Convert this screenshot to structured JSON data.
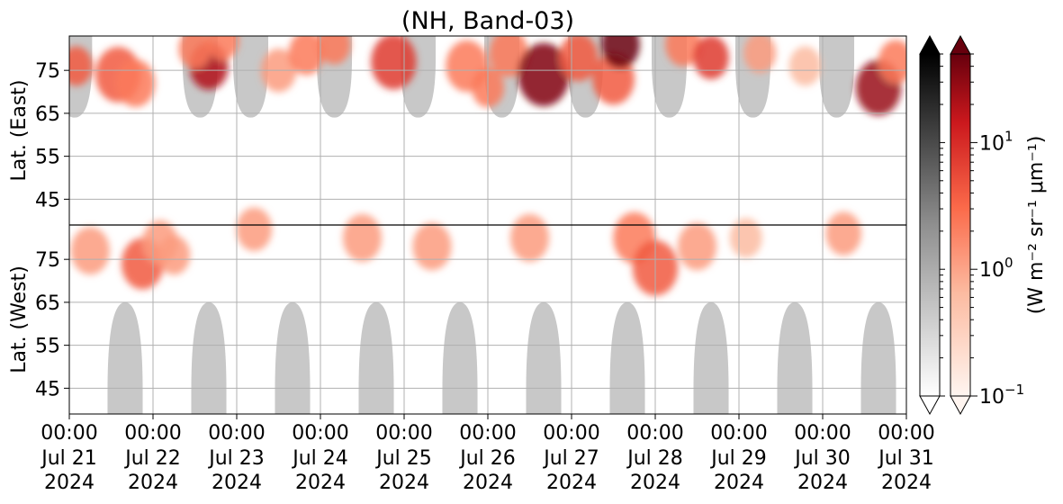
{
  "chart_data": {
    "type": "heatmap",
    "title": "(NH, Band-03)",
    "x": {
      "ticks": [
        {
          "date": "2024-07-21T00:00",
          "time": "00:00",
          "day": "Jul 21",
          "year": "2024"
        },
        {
          "date": "2024-07-22T00:00",
          "time": "00:00",
          "day": "Jul 22",
          "year": "2024"
        },
        {
          "date": "2024-07-23T00:00",
          "time": "00:00",
          "day": "Jul 23",
          "year": "2024"
        },
        {
          "date": "2024-07-24T00:00",
          "time": "00:00",
          "day": "Jul 24",
          "year": "2024"
        },
        {
          "date": "2024-07-25T00:00",
          "time": "00:00",
          "day": "Jul 25",
          "year": "2024"
        },
        {
          "date": "2024-07-26T00:00",
          "time": "00:00",
          "day": "Jul 26",
          "year": "2024"
        },
        {
          "date": "2024-07-27T00:00",
          "time": "00:00",
          "day": "Jul 27",
          "year": "2024"
        },
        {
          "date": "2024-07-28T00:00",
          "time": "00:00",
          "day": "Jul 28",
          "year": "2024"
        },
        {
          "date": "2024-07-29T00:00",
          "time": "00:00",
          "day": "Jul 29",
          "year": "2024"
        },
        {
          "date": "2024-07-30T00:00",
          "time": "00:00",
          "day": "Jul 30",
          "year": "2024"
        },
        {
          "date": "2024-07-31T00:00",
          "time": "00:00",
          "day": "Jul 31",
          "year": "2024"
        }
      ],
      "range": [
        "2024-07-21T00:00",
        "2024-07-31T00:00"
      ]
    },
    "y_top": {
      "label": "Lat. (East)",
      "ticks": [
        "45",
        "55",
        "65",
        "75"
      ],
      "range": [
        39,
        83
      ]
    },
    "y_bottom": {
      "label": "Lat. (West)",
      "ticks": [
        "75",
        "65",
        "55",
        "45"
      ],
      "range": [
        83,
        39
      ]
    },
    "grid": true,
    "colorbars": [
      {
        "name": "grey",
        "scale": "log",
        "range": [
          0.1,
          50
        ],
        "extend": "both",
        "colors": [
          "#ffffff",
          "#000000"
        ]
      },
      {
        "name": "reds",
        "scale": "log",
        "range": [
          0.1,
          50
        ],
        "extend": "both",
        "ticks": [
          {
            "value": 0.1,
            "base": "10",
            "exp": "−1"
          },
          {
            "value": 1,
            "base": "10",
            "exp": "0"
          },
          {
            "value": 10,
            "base": "10",
            "exp": "1"
          }
        ],
        "label": "(W m⁻² sr⁻¹ μm⁻¹)",
        "colors": [
          "#fff5f0",
          "#fcbba1",
          "#fb6a4a",
          "#cb181d",
          "#67000d"
        ]
      }
    ],
    "night_lobes": {
      "color": "#c8c8c8",
      "east_centers": [
        "2024-07-21T01:30",
        "2024-07-22T13:30",
        "2024-07-23T04:00",
        "2024-07-24T04:00",
        "2024-07-25T04:00",
        "2024-07-26T04:00",
        "2024-07-27T04:00",
        "2024-07-28T04:00",
        "2024-07-29T04:00",
        "2024-07-30T04:00"
      ],
      "west_centers": [
        "2024-07-21T16:00",
        "2024-07-22T16:00",
        "2024-07-23T16:00",
        "2024-07-24T16:00",
        "2024-07-25T16:00",
        "2024-07-26T16:00",
        "2024-07-27T16:00",
        "2024-07-28T16:00",
        "2024-07-29T16:00",
        "2024-07-30T16:00"
      ],
      "east_lat_edge": 64,
      "west_lat_edge": 65
    },
    "blobs": [
      {
        "t": "2024-07-21T02:00",
        "hemi": "E",
        "lat": 76,
        "level": 0.6,
        "size": 1
      },
      {
        "t": "2024-07-21T06:00",
        "hemi": "W",
        "lat": 77,
        "level": 0.4,
        "size": 1.2
      },
      {
        "t": "2024-07-21T14:00",
        "hemi": "E",
        "lat": 74,
        "level": 0.6,
        "size": 1.4
      },
      {
        "t": "2024-07-21T19:00",
        "hemi": "E",
        "lat": 72,
        "level": 0.5,
        "size": 1.2
      },
      {
        "t": "2024-07-21T21:00",
        "hemi": "W",
        "lat": 74,
        "level": 0.6,
        "size": 1.3
      },
      {
        "t": "2024-07-22T02:00",
        "hemi": "W",
        "lat": 79,
        "level": 0.4,
        "size": 1.1
      },
      {
        "t": "2024-07-22T06:00",
        "hemi": "W",
        "lat": 76,
        "level": 0.4,
        "size": 1
      },
      {
        "t": "2024-07-22T16:00",
        "hemi": "E",
        "lat": 76,
        "level": 0.85,
        "size": 1.2
      },
      {
        "t": "2024-07-22T12:00",
        "hemi": "E",
        "lat": 80,
        "level": 0.5,
        "size": 1
      },
      {
        "t": "2024-07-22T20:00",
        "hemi": "E",
        "lat": 82,
        "level": 0.5,
        "size": 1
      },
      {
        "t": "2024-07-23T05:00",
        "hemi": "W",
        "lat": 82,
        "level": 0.4,
        "size": 1.1
      },
      {
        "t": "2024-07-23T12:00",
        "hemi": "E",
        "lat": 75,
        "level": 0.4,
        "size": 1.1
      },
      {
        "t": "2024-07-23T20:00",
        "hemi": "E",
        "lat": 79,
        "level": 0.5,
        "size": 1.1
      },
      {
        "t": "2024-07-24T04:00",
        "hemi": "E",
        "lat": 81,
        "level": 0.5,
        "size": 1
      },
      {
        "t": "2024-07-24T12:00",
        "hemi": "W",
        "lat": 80,
        "level": 0.4,
        "size": 1.2
      },
      {
        "t": "2024-07-24T21:00",
        "hemi": "E",
        "lat": 77,
        "level": 0.7,
        "size": 1.4
      },
      {
        "t": "2024-07-25T08:00",
        "hemi": "W",
        "lat": 78,
        "level": 0.4,
        "size": 1.2
      },
      {
        "t": "2024-07-25T18:00",
        "hemi": "E",
        "lat": 76,
        "level": 0.5,
        "size": 1.3
      },
      {
        "t": "2024-07-26T00:00",
        "hemi": "E",
        "lat": 71,
        "level": 0.5,
        "size": 1
      },
      {
        "t": "2024-07-26T06:00",
        "hemi": "E",
        "lat": 79,
        "level": 0.5,
        "size": 1.2
      },
      {
        "t": "2024-07-26T16:00",
        "hemi": "E",
        "lat": 74,
        "level": 0.95,
        "size": 1.6
      },
      {
        "t": "2024-07-26T12:00",
        "hemi": "W",
        "lat": 80,
        "level": 0.4,
        "size": 1.2
      },
      {
        "t": "2024-07-27T02:00",
        "hemi": "E",
        "lat": 78,
        "level": 0.6,
        "size": 1.2
      },
      {
        "t": "2024-07-27T12:00",
        "hemi": "E",
        "lat": 73,
        "level": 0.6,
        "size": 1.3
      },
      {
        "t": "2024-07-27T14:00",
        "hemi": "E",
        "lat": 81,
        "level": 1.0,
        "size": 1.2
      },
      {
        "t": "2024-07-27T18:00",
        "hemi": "W",
        "lat": 80,
        "level": 0.5,
        "size": 1.3
      },
      {
        "t": "2024-07-28T00:00",
        "hemi": "W",
        "lat": 73,
        "level": 0.6,
        "size": 1.4
      },
      {
        "t": "2024-07-28T08:00",
        "hemi": "E",
        "lat": 81,
        "level": 0.5,
        "size": 1.1
      },
      {
        "t": "2024-07-28T12:00",
        "hemi": "W",
        "lat": 78,
        "level": 0.4,
        "size": 1.2
      },
      {
        "t": "2024-07-28T16:00",
        "hemi": "E",
        "lat": 78,
        "level": 0.7,
        "size": 1.1
      },
      {
        "t": "2024-07-29T02:00",
        "hemi": "W",
        "lat": 80,
        "level": 0.3,
        "size": 1
      },
      {
        "t": "2024-07-29T06:00",
        "hemi": "E",
        "lat": 79,
        "level": 0.4,
        "size": 1
      },
      {
        "t": "2024-07-29T19:00",
        "hemi": "E",
        "lat": 76,
        "level": 0.3,
        "size": 1
      },
      {
        "t": "2024-07-30T06:00",
        "hemi": "W",
        "lat": 81,
        "level": 0.4,
        "size": 1.1
      },
      {
        "t": "2024-07-30T16:00",
        "hemi": "E",
        "lat": 71,
        "level": 0.9,
        "size": 1.4
      },
      {
        "t": "2024-07-30T21:00",
        "hemi": "E",
        "lat": 77,
        "level": 0.5,
        "size": 1.1
      }
    ]
  }
}
